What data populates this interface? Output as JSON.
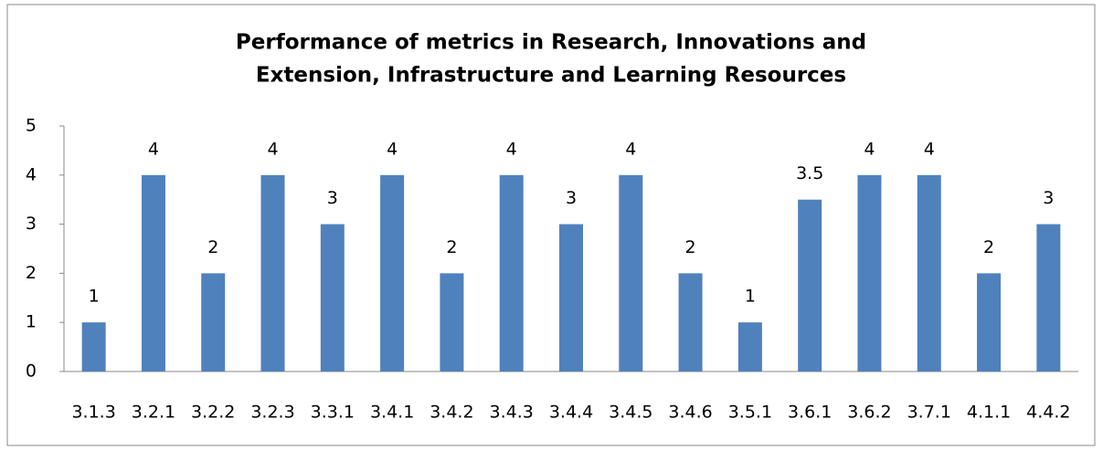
{
  "chart_data": {
    "type": "bar",
    "title": [
      "Performance of metrics in Research, Innovations and",
      "Extension, Infrastructure and Learning Resources"
    ],
    "categories": [
      "3.1.3",
      "3.2.1",
      "3.2.2",
      "3.2.3",
      "3.3.1",
      "3.4.1",
      "3.4.2",
      "3.4.3",
      "3.4.4",
      "3.4.5",
      "3.4.6",
      "3.5.1",
      "3.6.1",
      "3.6.2",
      "3.7.1",
      "4.1.1",
      "4.4.2"
    ],
    "values": [
      1,
      4,
      2,
      4,
      3,
      4,
      2,
      4,
      3,
      4,
      2,
      1,
      3.5,
      4,
      4,
      2,
      3
    ],
    "color": "#4f81bd",
    "ylim": [
      0,
      5
    ],
    "yticks": [
      0,
      1,
      2,
      3,
      4,
      5
    ],
    "grid": false
  }
}
